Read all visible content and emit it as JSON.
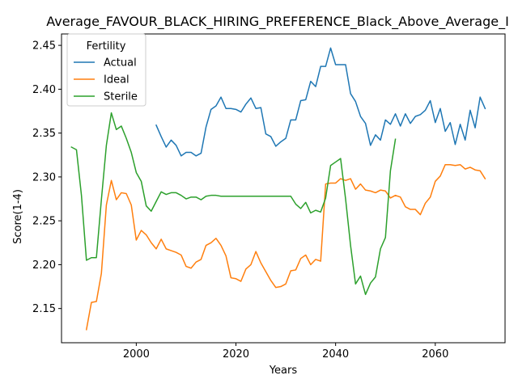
{
  "chart_data": {
    "type": "line",
    "title": "Average_FAVOUR_BLACK_HIRING_PREFERENCE_Black_Above_Average_I",
    "xlabel": "Years",
    "ylabel": "Score(1-4)",
    "xlim": [
      1985,
      2074
    ],
    "ylim": [
      2.111,
      2.463
    ],
    "xticks": [
      2000,
      2020,
      2040,
      2060
    ],
    "yticks": [
      2.15,
      2.2,
      2.25,
      2.3,
      2.35,
      2.4,
      2.45
    ],
    "grid": false,
    "legend": {
      "title": "Fertility",
      "placement": "top-left"
    },
    "series": [
      {
        "name": "Actual",
        "color": "#1f77b4",
        "x": [
          2004,
          2005,
          2006,
          2007,
          2008,
          2009,
          2010,
          2011,
          2012,
          2013,
          2014,
          2015,
          2016,
          2017,
          2018,
          2019,
          2020,
          2021,
          2022,
          2023,
          2024,
          2025,
          2026,
          2027,
          2028,
          2029,
          2030,
          2031,
          2032,
          2033,
          2034,
          2035,
          2036,
          2037,
          2038,
          2039,
          2040,
          2041,
          2042,
          2043,
          2044,
          2045,
          2046,
          2047,
          2048,
          2049,
          2050,
          2051,
          2052,
          2053,
          2054,
          2055,
          2056,
          2057,
          2058,
          2059,
          2060,
          2061,
          2062,
          2063,
          2064,
          2065,
          2066,
          2067,
          2068,
          2069,
          2070
        ],
        "y": [
          2.359,
          2.346,
          2.334,
          2.342,
          2.336,
          2.324,
          2.328,
          2.328,
          2.324,
          2.327,
          2.357,
          2.377,
          2.381,
          2.391,
          2.378,
          2.378,
          2.377,
          2.374,
          2.383,
          2.39,
          2.378,
          2.379,
          2.349,
          2.346,
          2.335,
          2.34,
          2.344,
          2.365,
          2.365,
          2.387,
          2.388,
          2.409,
          2.403,
          2.426,
          2.426,
          2.447,
          2.428,
          2.428,
          2.428,
          2.395,
          2.386,
          2.369,
          2.361,
          2.336,
          2.348,
          2.342,
          2.365,
          2.36,
          2.372,
          2.358,
          2.372,
          2.361,
          2.369,
          2.371,
          2.376,
          2.387,
          2.362,
          2.378,
          2.352,
          2.362,
          2.337,
          2.36,
          2.342,
          2.376,
          2.356,
          2.391,
          2.378
        ]
      },
      {
        "name": "Ideal",
        "color": "#ff7f0e",
        "x": [
          1990,
          1991,
          1992,
          1993,
          1994,
          1995,
          1996,
          1997,
          1998,
          1999,
          2000,
          2001,
          2002,
          2003,
          2004,
          2005,
          2006,
          2007,
          2008,
          2009,
          2010,
          2011,
          2012,
          2013,
          2014,
          2015,
          2016,
          2017,
          2018,
          2019,
          2020,
          2021,
          2022,
          2023,
          2024,
          2025,
          2026,
          2027,
          2028,
          2029,
          2030,
          2031,
          2032,
          2033,
          2034,
          2035,
          2036,
          2037,
          2038,
          2039,
          2040,
          2041,
          2042,
          2043,
          2044,
          2045,
          2046,
          2047,
          2048,
          2049,
          2050,
          2051,
          2052,
          2053,
          2054,
          2055,
          2056,
          2057,
          2058,
          2059,
          2060,
          2061,
          2062,
          2063,
          2064,
          2065,
          2066,
          2067,
          2068,
          2069,
          2070
        ],
        "y": [
          2.126,
          2.157,
          2.158,
          2.19,
          2.268,
          2.296,
          2.274,
          2.282,
          2.281,
          2.268,
          2.228,
          2.239,
          2.234,
          2.225,
          2.218,
          2.229,
          2.218,
          2.216,
          2.214,
          2.211,
          2.198,
          2.196,
          2.203,
          2.206,
          2.222,
          2.225,
          2.23,
          2.222,
          2.21,
          2.185,
          2.184,
          2.181,
          2.195,
          2.2,
          2.215,
          2.202,
          2.192,
          2.182,
          2.174,
          2.175,
          2.178,
          2.193,
          2.194,
          2.207,
          2.211,
          2.2,
          2.206,
          2.204,
          2.292,
          2.293,
          2.293,
          2.298,
          2.296,
          2.298,
          2.286,
          2.292,
          2.285,
          2.284,
          2.282,
          2.285,
          2.284,
          2.276,
          2.279,
          2.277,
          2.266,
          2.263,
          2.263,
          2.257,
          2.27,
          2.277,
          2.295,
          2.301,
          2.314,
          2.314,
          2.313,
          2.314,
          2.309,
          2.311,
          2.308,
          2.307,
          2.298
        ]
      },
      {
        "name": "Sterile",
        "color": "#2ca02c",
        "x": [
          1987,
          1988,
          1989,
          1990,
          1991,
          1992,
          1993,
          1994,
          1995,
          1996,
          1997,
          1998,
          1999,
          2000,
          2001,
          2002,
          2003,
          2004,
          2005,
          2006,
          2007,
          2008,
          2009,
          2010,
          2011,
          2012,
          2013,
          2014,
          2015,
          2016,
          2017,
          2018,
          2019,
          2020,
          2021,
          2022,
          2023,
          2024,
          2025,
          2026,
          2027,
          2028,
          2029,
          2030,
          2031,
          2032,
          2033,
          2034,
          2035,
          2036,
          2037,
          2038,
          2039,
          2040,
          2041,
          2042,
          2043,
          2044,
          2045,
          2046,
          2047,
          2048,
          2049,
          2050,
          2051,
          2052
        ],
        "y": [
          2.334,
          2.331,
          2.279,
          2.205,
          2.208,
          2.208,
          2.274,
          2.336,
          2.373,
          2.354,
          2.358,
          2.344,
          2.328,
          2.305,
          2.295,
          2.267,
          2.261,
          2.272,
          2.283,
          2.28,
          2.282,
          2.282,
          2.279,
          2.275,
          2.277,
          2.277,
          2.274,
          2.278,
          2.279,
          2.279,
          2.278,
          2.278,
          2.278,
          2.278,
          2.278,
          2.278,
          2.278,
          2.278,
          2.278,
          2.278,
          2.278,
          2.278,
          2.278,
          2.278,
          2.278,
          2.269,
          2.264,
          2.271,
          2.259,
          2.262,
          2.26,
          2.276,
          2.313,
          2.317,
          2.321,
          2.275,
          2.222,
          2.178,
          2.187,
          2.166,
          2.179,
          2.186,
          2.218,
          2.231,
          2.307,
          2.343
        ]
      }
    ]
  }
}
